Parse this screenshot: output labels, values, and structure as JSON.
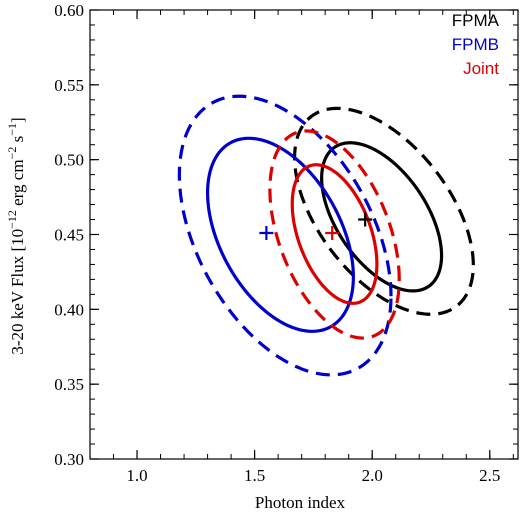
{
  "chart_data": {
    "type": "contour",
    "xlabel": "Photon index",
    "ylabel_parts": {
      "main": "3-20 keV Flux [10",
      "exp1": "−12",
      "mid": " erg cm",
      "exp2": "−2",
      "sp": " s",
      "exp3": "−1",
      "end": "]"
    },
    "xlim": [
      0.8,
      2.62
    ],
    "ylim": [
      0.3,
      0.6
    ],
    "xticks": [
      1.0,
      1.5,
      2.0,
      2.5
    ],
    "xtick_labels": [
      "1.0",
      "1.5",
      "2.0",
      "2.5"
    ],
    "yticks": [
      0.3,
      0.35,
      0.4,
      0.45,
      0.5,
      0.55,
      0.6
    ],
    "ytick_labels": [
      "0.30",
      "0.35",
      "0.40",
      "0.45",
      "0.50",
      "0.55",
      "0.60"
    ],
    "legend_position": "top-right",
    "series": [
      {
        "name": "FPMA",
        "color": "#000000",
        "best_fit": {
          "x": 1.97,
          "y": 0.46
        },
        "contours": [
          {
            "level": "inner",
            "style": "solid",
            "center": [
              2.04,
              0.4618
            ],
            "semi_x": 0.255,
            "semi_y": 0.0495,
            "tilt": -0.55
          },
          {
            "level": "outer",
            "style": "dashed",
            "center": [
              2.05,
              0.4655
            ],
            "semi_x": 0.38,
            "semi_y": 0.0688,
            "tilt": -0.55
          }
        ]
      },
      {
        "name": "FPMB",
        "color": "#0000cc",
        "best_fit": {
          "x": 1.55,
          "y": 0.451
        },
        "contours": [
          {
            "level": "inner",
            "style": "solid",
            "center": [
              1.61,
              0.4498
            ],
            "semi_x": 0.31,
            "semi_y": 0.0645,
            "tilt": -0.45
          },
          {
            "level": "outer",
            "style": "dashed",
            "center": [
              1.63,
              0.4493
            ],
            "semi_x": 0.45,
            "semi_y": 0.0931,
            "tilt": -0.45
          }
        ]
      },
      {
        "name": "Joint",
        "color": "#dd0000",
        "best_fit": {
          "x": 1.83,
          "y": 0.451
        },
        "contours": [
          {
            "level": "inner",
            "style": "solid",
            "center": [
              1.84,
              0.4503
            ],
            "semi_x": 0.18,
            "semi_y": 0.0463,
            "tilt": -0.45
          },
          {
            "level": "outer",
            "style": "dashed",
            "center": [
              1.84,
              0.45
            ],
            "semi_x": 0.275,
            "semi_y": 0.0692,
            "tilt": -0.45
          }
        ]
      }
    ]
  }
}
